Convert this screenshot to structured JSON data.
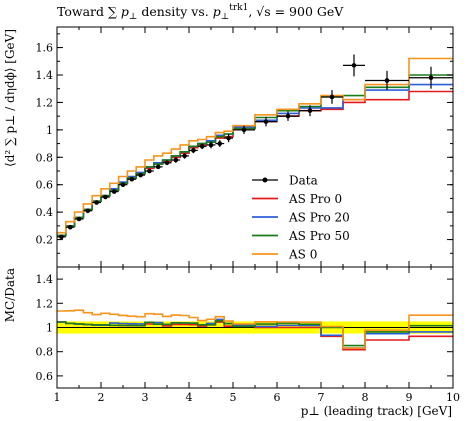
{
  "chart_data": {
    "type": "line",
    "title": "Toward ∑ p⊥ density vs. p⊥trk1, √s = 900 GeV",
    "title_parts": {
      "prefix": "Toward ∑ ",
      "p": "p",
      "perp": "⊥",
      "mid": " density vs. ",
      "sup": "trk1",
      "suffix": ", √s = 900 GeV"
    },
    "xlabel": "p⊥ (leading track) [GeV]",
    "ylabel": "⟨d² ∑ p⊥ / dηdϕ⟩ [GeV]",
    "ratio_ylabel": "MC/Data",
    "xlim": [
      1,
      10
    ],
    "ylim": [
      0,
      1.75
    ],
    "ratio_ylim": [
      0.5,
      1.5
    ],
    "xticks": [
      "1",
      "2",
      "3",
      "4",
      "5",
      "6",
      "7",
      "8",
      "9",
      "10"
    ],
    "yticks": [
      "0.2",
      "0.4",
      "0.6",
      "0.8",
      "1",
      "1.2",
      "1.4",
      "1.6"
    ],
    "ratio_yticks": [
      "0.6",
      "0.8",
      "1",
      "1.2",
      "1.4"
    ],
    "legend_position": "right",
    "bin_edges": [
      1.0,
      1.2,
      1.4,
      1.6,
      1.8,
      2.0,
      2.2,
      2.4,
      2.6,
      2.8,
      3.0,
      3.2,
      3.4,
      3.6,
      3.8,
      4.0,
      4.2,
      4.4,
      4.6,
      4.8,
      5.0,
      5.5,
      6.0,
      6.5,
      7.0,
      7.5,
      8.0,
      9.0,
      10.0
    ],
    "data": {
      "name": "Data",
      "color": "#000000",
      "x": [
        1.1,
        1.3,
        1.5,
        1.7,
        1.9,
        2.1,
        2.3,
        2.5,
        2.7,
        2.9,
        3.1,
        3.3,
        3.5,
        3.7,
        3.9,
        4.1,
        4.3,
        4.5,
        4.7,
        4.9,
        5.25,
        5.75,
        6.25,
        6.75,
        7.25,
        7.75,
        8.5,
        9.5
      ],
      "y": [
        0.22,
        0.29,
        0.35,
        0.41,
        0.47,
        0.51,
        0.55,
        0.6,
        0.64,
        0.67,
        0.7,
        0.73,
        0.76,
        0.78,
        0.81,
        0.85,
        0.88,
        0.89,
        0.9,
        0.94,
        1.0,
        1.06,
        1.1,
        1.14,
        1.24,
        1.47,
        1.36,
        1.38
      ],
      "yerr": [
        0.01,
        0.01,
        0.01,
        0.01,
        0.01,
        0.01,
        0.01,
        0.01,
        0.01,
        0.01,
        0.015,
        0.015,
        0.015,
        0.02,
        0.02,
        0.02,
        0.02,
        0.025,
        0.025,
        0.03,
        0.03,
        0.035,
        0.035,
        0.04,
        0.05,
        0.08,
        0.07,
        0.08
      ]
    },
    "series": [
      {
        "name": "AS Pro 0",
        "color": "#e41a1c",
        "values": [
          0.23,
          0.3,
          0.36,
          0.42,
          0.48,
          0.52,
          0.56,
          0.61,
          0.65,
          0.68,
          0.72,
          0.75,
          0.77,
          0.8,
          0.83,
          0.87,
          0.89,
          0.91,
          0.94,
          0.95,
          1.01,
          1.06,
          1.1,
          1.14,
          1.15,
          1.2,
          1.22,
          1.28
        ]
      },
      {
        "name": "AS Pro 20",
        "color": "#2b5fd9",
        "values": [
          0.23,
          0.3,
          0.36,
          0.42,
          0.48,
          0.52,
          0.57,
          0.62,
          0.66,
          0.69,
          0.73,
          0.76,
          0.78,
          0.81,
          0.84,
          0.88,
          0.9,
          0.92,
          0.96,
          0.97,
          1.02,
          1.07,
          1.12,
          1.16,
          1.16,
          1.22,
          1.29,
          1.33
        ]
      },
      {
        "name": "AS Pro 50",
        "color": "#1a7d1a",
        "values": [
          0.23,
          0.3,
          0.36,
          0.42,
          0.48,
          0.52,
          0.56,
          0.61,
          0.65,
          0.68,
          0.73,
          0.75,
          0.78,
          0.81,
          0.84,
          0.88,
          0.9,
          0.91,
          0.95,
          0.97,
          1.01,
          1.09,
          1.14,
          1.17,
          1.24,
          1.25,
          1.31,
          1.4
        ]
      },
      {
        "name": "AS 0",
        "color": "#f7941d",
        "values": [
          0.25,
          0.33,
          0.4,
          0.46,
          0.52,
          0.57,
          0.61,
          0.66,
          0.7,
          0.73,
          0.78,
          0.81,
          0.83,
          0.86,
          0.89,
          0.92,
          0.93,
          0.95,
          0.98,
          0.99,
          1.03,
          1.11,
          1.15,
          1.19,
          1.25,
          1.22,
          1.33,
          1.52
        ]
      }
    ],
    "legend": [
      "Data",
      "AS Pro 0",
      "AS Pro 20",
      "AS Pro 50",
      "AS 0"
    ]
  }
}
